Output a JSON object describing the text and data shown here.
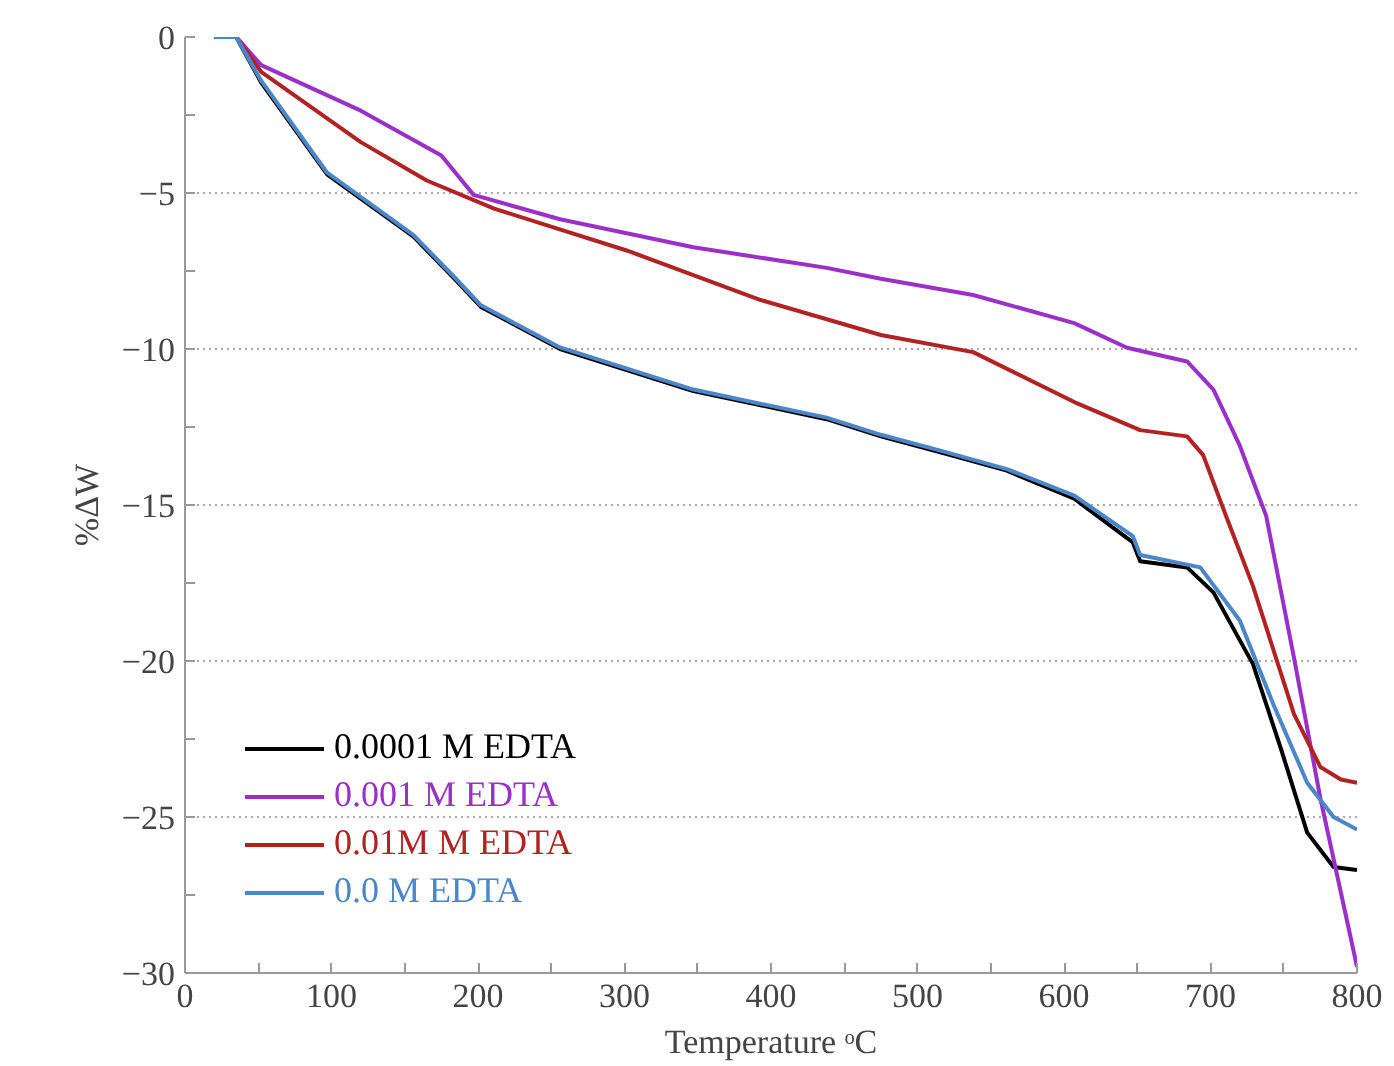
{
  "chart_data": {
    "type": "line",
    "xlabel": "Temperature ᵒC",
    "ylabel": "%ΔW",
    "xlim": [
      0,
      800
    ],
    "ylim": [
      -30,
      0
    ],
    "xticks": [
      0,
      {
        "value": 50,
        "label": null
      },
      100,
      {
        "value": 150,
        "label": null
      },
      200,
      {
        "value": 250,
        "label": null
      },
      300,
      {
        "value": 350,
        "label": null
      },
      400,
      {
        "value": 450,
        "label": null
      },
      500,
      {
        "value": 550,
        "label": null
      },
      600,
      {
        "value": 650,
        "label": null
      },
      700,
      {
        "value": 750,
        "label": null
      },
      800
    ],
    "yticks": [
      -30,
      {
        "value": -27.5,
        "label": null
      },
      -25,
      {
        "value": -22.5,
        "label": null
      },
      -20,
      {
        "value": -17.5,
        "label": null
      },
      -15,
      {
        "value": -12.5,
        "label": null
      },
      -10,
      {
        "value": -7.5,
        "label": null
      },
      -5,
      {
        "value": -2.5,
        "label": null
      },
      0
    ],
    "grid": "y",
    "legend": "bottom left",
    "line_style": "solid",
    "marker": "none",
    "series": [
      {
        "name": "0.0001 M EDTA",
        "color": "#000000",
        "x": [
          20,
          35,
          52,
          97,
          156,
          184,
          202,
          256,
          347,
          438,
          475,
          515,
          561,
          607,
          647,
          652,
          684,
          702,
          729,
          748,
          766,
          784,
          800
        ],
        "values": [
          0,
          0,
          -1.46,
          -4.4,
          -6.4,
          -7.75,
          -8.65,
          -10.0,
          -11.35,
          -12.25,
          -12.8,
          -13.3,
          -13.9,
          -14.8,
          -16.2,
          -16.8,
          -17.0,
          -17.8,
          -20.1,
          -22.8,
          -25.5,
          -26.6,
          -26.7
        ]
      },
      {
        "name": "0.001 M EDTA",
        "color": "#9b30c8",
        "x": [
          20,
          35,
          52,
          120,
          175,
          197,
          256,
          347,
          438,
          475,
          538,
          607,
          643,
          684,
          702,
          720,
          738,
          757,
          775,
          800
        ],
        "values": [
          0,
          0,
          -0.9,
          -2.36,
          -3.8,
          -5.06,
          -5.84,
          -6.74,
          -7.4,
          -7.75,
          -8.27,
          -9.17,
          -9.96,
          -10.4,
          -11.3,
          -13.1,
          -15.35,
          -19.9,
          -24.4,
          -29.8
        ]
      },
      {
        "name": "0.01M M EDTA",
        "color": "#b22222",
        "x": [
          20,
          35,
          52,
          120,
          165,
          211,
          302,
          393,
          475,
          538,
          607,
          652,
          684,
          695,
          711,
          729,
          757,
          775,
          789,
          800
        ],
        "values": [
          0,
          0,
          -1.12,
          -3.37,
          -4.6,
          -5.5,
          -6.85,
          -8.43,
          -9.55,
          -10.1,
          -11.7,
          -12.6,
          -12.8,
          -13.4,
          -15.4,
          -17.6,
          -21.7,
          -23.4,
          -23.8,
          -23.9
        ]
      },
      {
        "name": "0.0 M EDTA",
        "color": "#4a86c8",
        "x": [
          20,
          35,
          52,
          97,
          156,
          184,
          202,
          256,
          347,
          438,
          475,
          515,
          561,
          607,
          647,
          652,
          693,
          720,
          743,
          766,
          784,
          800
        ],
        "values": [
          0,
          0,
          -1.4,
          -4.35,
          -6.35,
          -7.7,
          -8.6,
          -9.95,
          -11.3,
          -12.2,
          -12.75,
          -13.25,
          -13.85,
          -14.7,
          -16.0,
          -16.6,
          -17.0,
          -18.7,
          -21.4,
          -23.9,
          -25.0,
          -25.4
        ]
      }
    ]
  }
}
